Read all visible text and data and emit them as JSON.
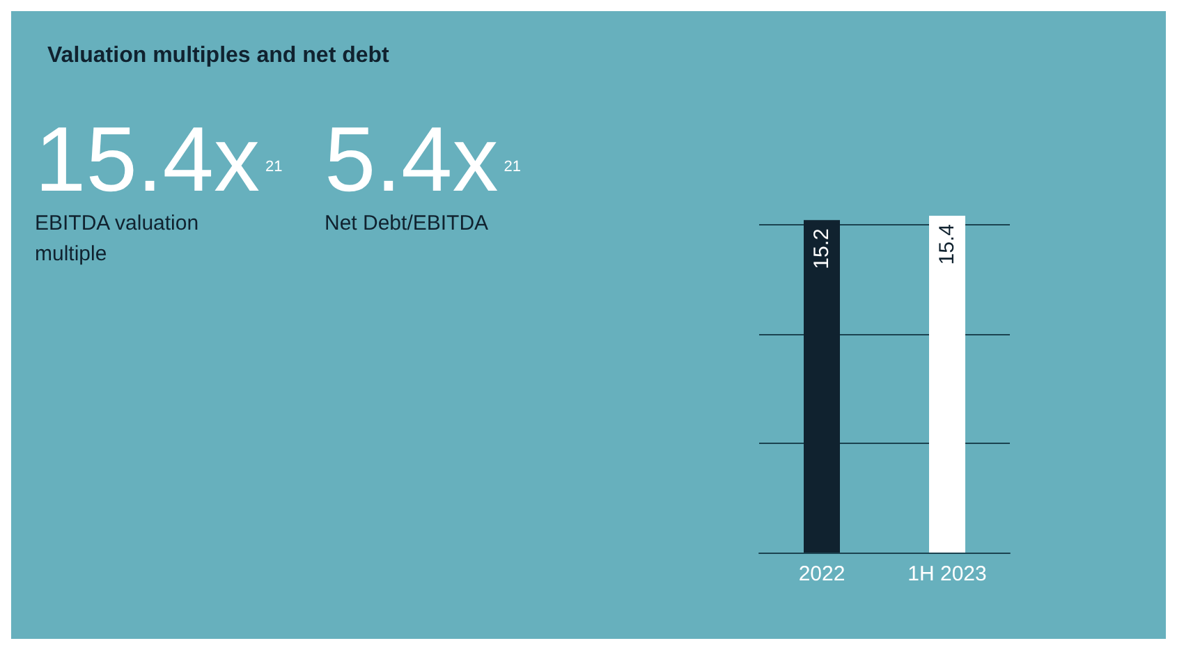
{
  "chart_data": {
    "type": "bar",
    "title": "Valuation multiples and net debt",
    "categories": [
      "2022",
      "1H 2023"
    ],
    "values": [
      15.2,
      15.4
    ],
    "colors": [
      "#10222f",
      "#ffffff"
    ],
    "data_labels": true,
    "ref_lines": [
      {
        "axis": "y",
        "value": 5,
        "color": "#1b4350"
      },
      {
        "axis": "y",
        "value": 10,
        "color": "#1b4350"
      },
      {
        "axis": "y",
        "value": 15,
        "color": "#1b4350"
      }
    ],
    "tick_labels": "x",
    "annotations": [
      "15.4x$^{21}$",
      "EBITDA valuation multiple",
      "5.4x$^{21}$",
      "Net Debt/EBITDA"
    ]
  }
}
